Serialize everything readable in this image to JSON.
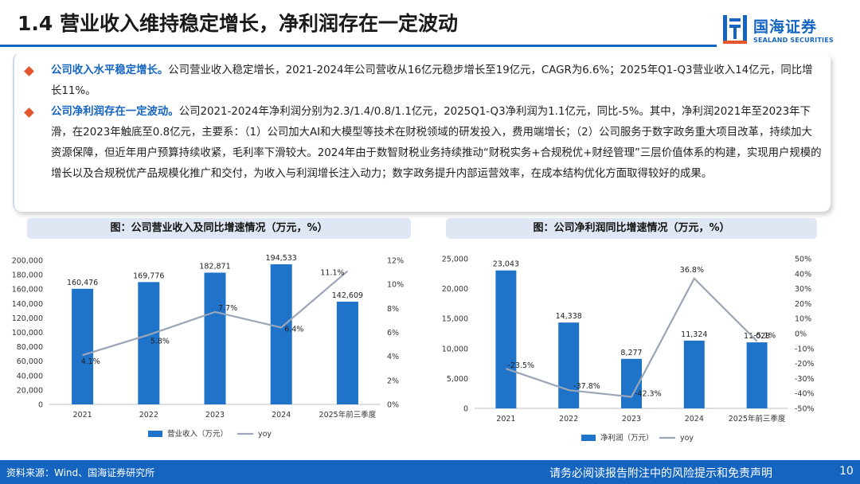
{
  "header": {
    "title": "1.4 营业收入维持稳定增长，净利润存在一定波动",
    "logo_cn": "国海证券",
    "logo_en": "SEALAND SECURITIES"
  },
  "bullets": [
    {
      "head": "公司收入水平稳定增长。",
      "body": "公司营业收入稳定增长，2021-2024年公司营收从16亿元稳步增长至19亿元，CAGR为6.6%；2025年Q1-Q3营业收入14亿元，同比增长11%。"
    },
    {
      "head": "公司净利润存在一定波动。",
      "body": "公司2021-2024年净利润分别为2.3/1.4/0.8/1.1亿元，2025Q1-Q3净利润为1.1亿元，同比-5%。其中，净利润2021年至2023年下滑，在2023年触底至0.8亿元，主要系：（1）公司加大AI和大模型等技术在财税领域的研发投入，费用端增长；（2）公司服务于数字政务重大项目改革，持续加大资源保障，但近年用户预算持续收紧，毛利率下滑较大。2024年由于数智财税业务持续推动“财税实务+合规税优+财经管理”三层价值体系的构建，实现用户规模的增长以及合规税优产品规模化推广和交付，为收入与利润增长注入动力；数字政务提升内部运营效率，在成本结构优化方面取得较好的成果。"
    }
  ],
  "colors": {
    "accent": "#1565c0",
    "bar": "#1f73c9",
    "line": "#9aa5b8",
    "caption_bg": "#dfe7f4",
    "bullet": "#e4572e"
  },
  "chart_data": [
    {
      "type": "bar",
      "title": "图：公司营业收入及同比增速情况（万元，%）",
      "categories": [
        "2021",
        "2022",
        "2023",
        "2024",
        "2025年前三季度"
      ],
      "series": [
        {
          "name": "营业收入（万元）",
          "type": "bar",
          "axis": "left",
          "values": [
            160476,
            169776,
            182871,
            194533,
            142609
          ],
          "labels": [
            "160,476",
            "169,776",
            "182,871",
            "194,533",
            "142,609"
          ]
        },
        {
          "name": "yoy",
          "type": "line",
          "axis": "right",
          "values": [
            4.1,
            5.8,
            7.7,
            6.4,
            11.1
          ],
          "labels": [
            "4.1%",
            "5.8%",
            "7.7%",
            "6.4%",
            "11.1%"
          ]
        }
      ],
      "ylim_left": [
        0,
        200000
      ],
      "ylim_right": [
        0,
        12
      ],
      "yticks_left": [
        "200,000",
        "180,000",
        "160,000",
        "140,000",
        "120,000",
        "100,000",
        "80,000",
        "60,000",
        "40,000",
        "20,000",
        "0"
      ],
      "yticks_right": [
        "12%",
        "10%",
        "8%",
        "6%",
        "4%",
        "2%",
        "0%"
      ],
      "legend": "bottom"
    },
    {
      "type": "bar",
      "title": "图：公司净利润同比增速情况（万元，%）",
      "categories": [
        "2021",
        "2022",
        "2023",
        "2024",
        "2025年前三季度"
      ],
      "series": [
        {
          "name": "净利润（万元）",
          "type": "bar",
          "axis": "left",
          "values": [
            23043,
            14338,
            8277,
            11324,
            11028
          ],
          "labels": [
            "23,043",
            "14,338",
            "8,277",
            "11,324",
            "11,028"
          ]
        },
        {
          "name": "yoy",
          "type": "line",
          "axis": "right",
          "values": [
            -23.5,
            -37.8,
            -42.3,
            36.8,
            -5.1
          ],
          "labels": [
            "-23.5%",
            "-37.8%",
            "-42.3%",
            "36.8%",
            "-5.1%"
          ]
        }
      ],
      "ylim_left": [
        0,
        25000
      ],
      "ylim_right": [
        -50,
        50
      ],
      "yticks_left": [
        "25,000",
        "20,000",
        "15,000",
        "10,000",
        "5,000",
        "0"
      ],
      "yticks_right": [
        "50%",
        "40%",
        "30%",
        "20%",
        "10%",
        "0%",
        "-10%",
        "-20%",
        "-30%",
        "-40%",
        "-50%"
      ],
      "legend": "bottom"
    }
  ],
  "footer": {
    "source": "资料来源：Wind、国海证券研究所",
    "disclaimer": "请务必阅读报告附注中的风险提示和免责声明",
    "page": "10"
  }
}
